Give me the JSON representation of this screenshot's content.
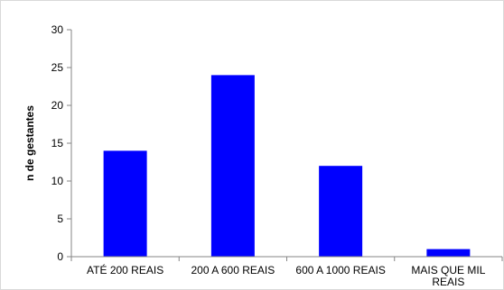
{
  "chart_data": {
    "type": "bar",
    "title": "",
    "xlabel": "",
    "ylabel": "n de gestantes",
    "categories": [
      [
        "ATÉ 200 REAIS"
      ],
      [
        "200 A 600 REAIS"
      ],
      [
        "600 A 1000 REAIS"
      ],
      [
        "MAIS QUE MIL",
        "REAIS"
      ]
    ],
    "values": [
      14,
      24,
      12,
      1
    ],
    "ylim": [
      0,
      30
    ],
    "yticks": [
      0,
      5,
      10,
      15,
      20,
      25,
      30
    ],
    "grid": false,
    "legend": "none",
    "bar_color": "#0000FF",
    "axis_color": "#868686"
  }
}
